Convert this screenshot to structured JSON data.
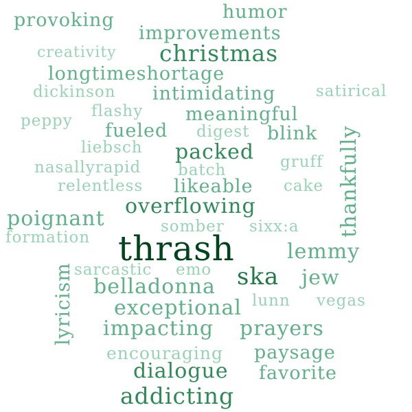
{
  "words": [
    {
      "text": "thrash",
      "color": "#00441b"
    },
    {
      "text": "christmas",
      "color": "#2e8b57"
    },
    {
      "text": "addicting",
      "color": "#2e8b57"
    },
    {
      "text": "overflowing",
      "color": "#2e8b57"
    },
    {
      "text": "ska",
      "color": "#1f7a47"
    },
    {
      "text": "packed",
      "color": "#2e8b57"
    },
    {
      "text": "dialogue",
      "color": "#2e8b57"
    },
    {
      "text": "thankfully",
      "color": "#5fb189"
    },
    {
      "text": "humor",
      "color": "#5fb189"
    },
    {
      "text": "provoking",
      "color": "#5fb189"
    },
    {
      "text": "improvements",
      "color": "#5fb189"
    },
    {
      "text": "creativity",
      "color": "#99d3b6"
    },
    {
      "text": "longtimeshortage",
      "color": "#5fb189"
    },
    {
      "text": "dickinson",
      "color": "#99d3b6"
    },
    {
      "text": "intimidating",
      "color": "#5fb189"
    },
    {
      "text": "satirical",
      "color": "#99d3b6"
    },
    {
      "text": "flashy",
      "color": "#99d3b6"
    },
    {
      "text": "meaningful",
      "color": "#5fb189"
    },
    {
      "text": "peppy",
      "color": "#99d3b6"
    },
    {
      "text": "fueled",
      "color": "#5fb189"
    },
    {
      "text": "digest",
      "color": "#99d3b6"
    },
    {
      "text": "blink",
      "color": "#5fb189"
    },
    {
      "text": "liebsch",
      "color": "#99d3b6"
    },
    {
      "text": "gruff",
      "color": "#99d3b6"
    },
    {
      "text": "nasallyrapid",
      "color": "#99d3b6"
    },
    {
      "text": "batch",
      "color": "#99d3b6"
    },
    {
      "text": "relentless",
      "color": "#99d3b6"
    },
    {
      "text": "likeable",
      "color": "#5fb189"
    },
    {
      "text": "cake",
      "color": "#99d3b6"
    },
    {
      "text": "poignant",
      "color": "#5fb189"
    },
    {
      "text": "somber",
      "color": "#99d3b6"
    },
    {
      "text": "sixx:a",
      "color": "#99d3b6"
    },
    {
      "text": "formation",
      "color": "#99d3b6"
    },
    {
      "text": "lemmy",
      "color": "#5fb189"
    },
    {
      "text": "sarcastic",
      "color": "#99d3b6"
    },
    {
      "text": "emo",
      "color": "#99d3b6"
    },
    {
      "text": "jew",
      "color": "#5fb189"
    },
    {
      "text": "belladonna",
      "color": "#5fb189"
    },
    {
      "text": "lyricism",
      "color": "#5fb189"
    },
    {
      "text": "exceptional",
      "color": "#5fb189"
    },
    {
      "text": "lunn",
      "color": "#99d3b6"
    },
    {
      "text": "vegas",
      "color": "#99d3b6"
    },
    {
      "text": "impacting",
      "color": "#5fb189"
    },
    {
      "text": "prayers",
      "color": "#5fb189"
    },
    {
      "text": "encouraging",
      "color": "#99d3b6"
    },
    {
      "text": "paysage",
      "color": "#5fb189"
    },
    {
      "text": "favorite",
      "color": "#5fb189"
    }
  ]
}
